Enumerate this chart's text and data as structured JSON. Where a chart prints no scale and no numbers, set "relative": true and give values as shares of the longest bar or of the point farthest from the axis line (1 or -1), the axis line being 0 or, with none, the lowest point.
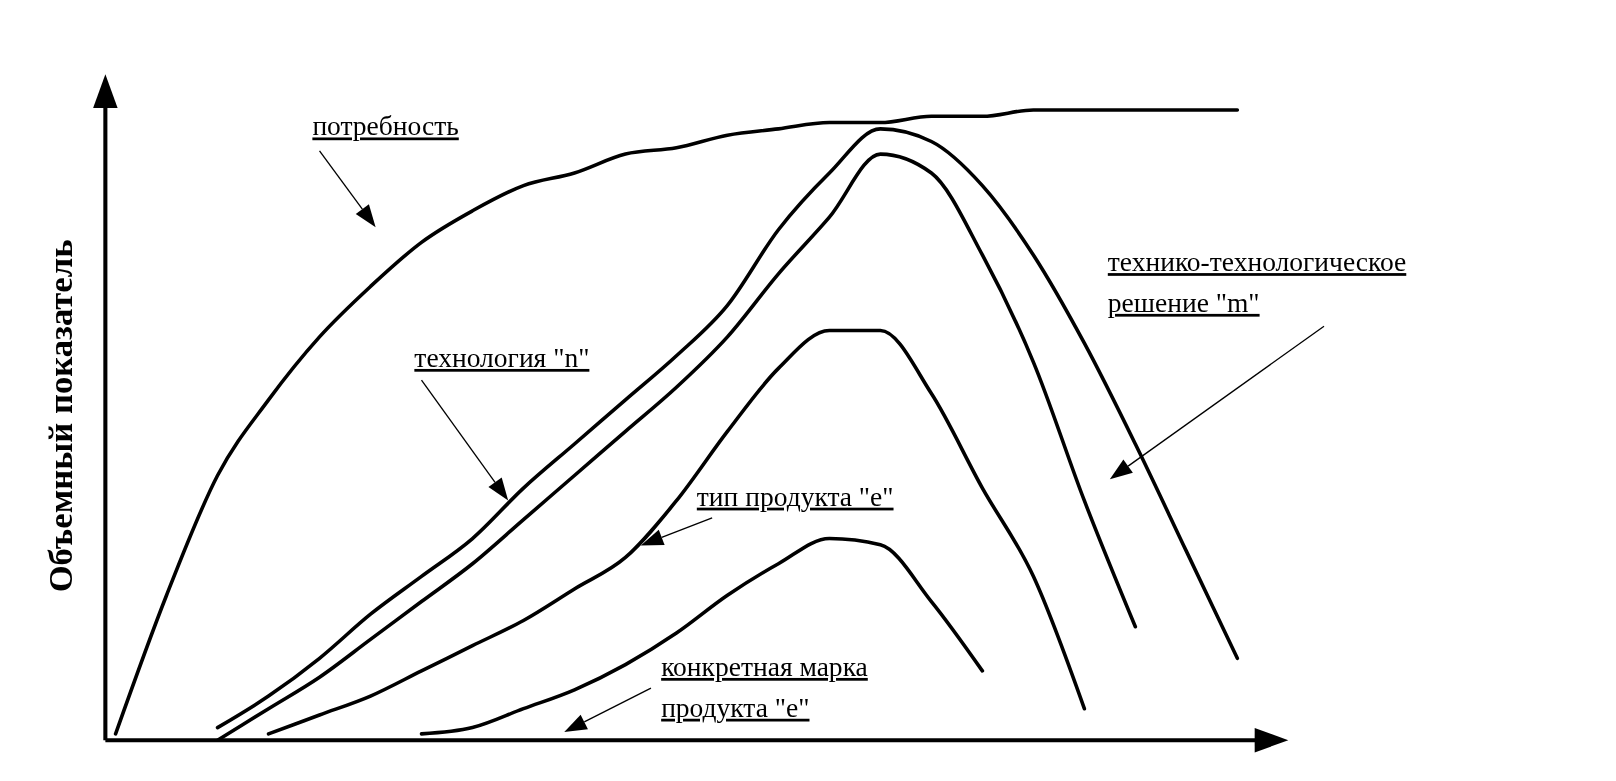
{
  "chart_data": {
    "type": "line",
    "relative": true,
    "ylabel": "Объемный показатель",
    "categories": [
      null,
      null,
      null,
      null,
      null,
      null,
      null,
      null,
      null,
      null,
      null,
      null,
      null,
      null,
      null,
      null,
      null,
      null,
      null,
      null,
      null,
      null,
      null
    ],
    "series": [
      {
        "name": "потребность",
        "color": "#000000",
        "values": [
          0.01,
          0.23,
          0.42,
          0.54,
          0.64,
          0.72,
          0.79,
          0.84,
          0.88,
          0.9,
          0.93,
          0.94,
          0.96,
          0.97,
          0.98,
          0.98,
          0.99,
          0.99,
          1,
          1,
          1,
          1,
          1
        ]
      },
      {
        "name": "технология \"n\"",
        "color": "#000000",
        "values": [
          null,
          null,
          0.02,
          0.07,
          0.13,
          0.2,
          0.26,
          0.32,
          0.4,
          0.47,
          0.54,
          0.61,
          0.69,
          0.81,
          0.9,
          0.97,
          0.95,
          0.88,
          0.77,
          0.63,
          0.47,
          0.3,
          0.13
        ]
      },
      {
        "name": "технико-технологическое решение \"m\"",
        "color": "#000000",
        "values": [
          null,
          null,
          0,
          0.05,
          0.1,
          0.16,
          0.22,
          0.28,
          0.35,
          0.42,
          0.49,
          0.56,
          0.64,
          0.74,
          0.83,
          0.93,
          0.9,
          0.77,
          0.6,
          0.38,
          0.18,
          null,
          null
        ]
      },
      {
        "name": "тип продукта \"e\"",
        "color": "#000000",
        "values": [
          null,
          null,
          null,
          0.01,
          0.04,
          0.07,
          0.11,
          0.15,
          0.19,
          0.24,
          0.29,
          0.38,
          0.49,
          0.59,
          0.65,
          0.65,
          0.55,
          0.4,
          0.26,
          0.05,
          null,
          null,
          null
        ]
      },
      {
        "name": "конкретная марка продукта \"e\"",
        "color": "#000000",
        "values": [
          null,
          null,
          null,
          null,
          null,
          null,
          0.01,
          0.02,
          0.05,
          0.08,
          0.12,
          0.17,
          0.23,
          0.28,
          0.32,
          0.31,
          0.22,
          0.11,
          null,
          null,
          null,
          null,
          null
        ]
      }
    ]
  }
}
